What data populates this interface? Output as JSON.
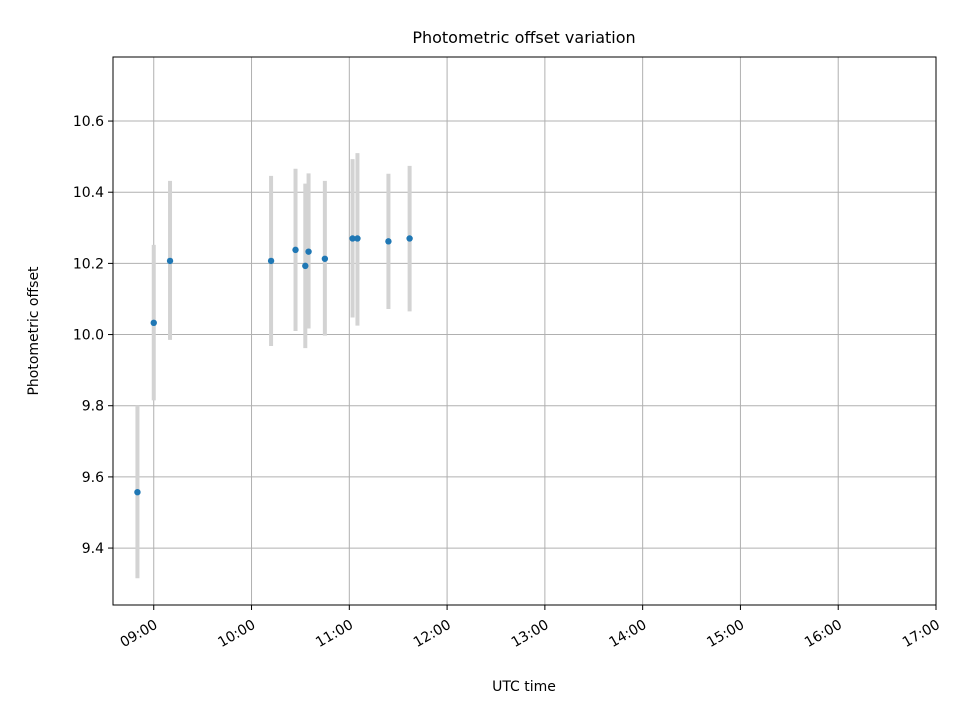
{
  "chart_data": {
    "type": "scatter",
    "title": "Photometric offset variation",
    "xlabel": "UTC time",
    "ylabel": "Photometric offset",
    "xlim": [
      "08:35",
      "17:00"
    ],
    "ylim": [
      9.24,
      10.78
    ],
    "grid": true,
    "x_ticks": [
      "09:00",
      "10:00",
      "11:00",
      "12:00",
      "13:00",
      "14:00",
      "15:00",
      "16:00",
      "17:00"
    ],
    "y_ticks": [
      "9.4",
      "9.6",
      "9.8",
      "10.0",
      "10.2",
      "10.4",
      "10.6"
    ],
    "colors": {
      "marker": "#1f77b4",
      "errorbar": "#d3d3d3",
      "grid": "#b0b0b0"
    },
    "series": [
      {
        "points": [
          {
            "x": "08:50",
            "y": 9.557,
            "lo": 9.315,
            "hi": 9.8
          },
          {
            "x": "08:60",
            "y": 10.033,
            "lo": 9.815,
            "hi": 10.252
          },
          {
            "x": "09:10",
            "y": 10.207,
            "lo": 9.985,
            "hi": 10.432
          },
          {
            "x": "09:72",
            "y": 10.207,
            "lo": 9.968,
            "hi": 10.446
          },
          {
            "x": "09:93",
            "y": 10.193,
            "lo": 9.962,
            "hi": 10.424
          },
          {
            "x": "09:95",
            "y": 10.233,
            "lo": 10.017,
            "hi": 10.453
          },
          {
            "x": "10:27",
            "y": 10.238,
            "lo": 10.01,
            "hi": 10.466
          },
          {
            "x": "10:45",
            "y": 10.213,
            "lo": 9.997,
            "hi": 10.432
          },
          {
            "x": "10:84",
            "y": 10.262,
            "lo": 10.072,
            "hi": 10.452
          },
          {
            "x": "10:97",
            "y": 10.27,
            "lo": 10.065,
            "hi": 10.474
          },
          {
            "x": "11:02",
            "y": 10.27,
            "lo": 10.048,
            "hi": 10.493
          },
          {
            "x": "11:05",
            "y": 10.27,
            "lo": 10.025,
            "hi": 10.51
          }
        ]
      }
    ]
  }
}
